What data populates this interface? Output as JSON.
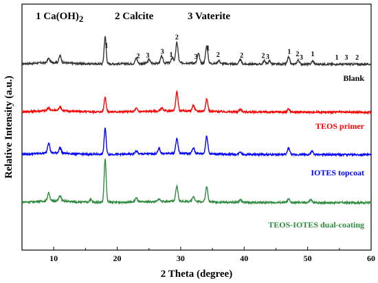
{
  "chart_data": {
    "type": "line",
    "title": "",
    "xlabel": "2 Theta (degree)",
    "ylabel": "Relative Intensity (a.u.)",
    "xlim": [
      5,
      60
    ],
    "xticks": [
      10,
      20,
      30,
      40,
      50,
      60
    ],
    "y_ticks_shown": false,
    "grid": false,
    "legend_entries": [
      {
        "number": "1",
        "name": "Ca(OH)2"
      },
      {
        "number": "2",
        "name": "Calcite"
      },
      {
        "number": "3",
        "name": "Vaterite"
      }
    ],
    "series": [
      {
        "name": "Blank",
        "color": "#333333",
        "offset": 3,
        "peaks": [
          [
            9.2,
            0.15
          ],
          [
            11.0,
            0.25
          ],
          [
            18.1,
            1.0
          ],
          [
            23.0,
            0.2
          ],
          [
            25.0,
            0.15
          ],
          [
            27.0,
            0.25
          ],
          [
            28.7,
            0.2
          ],
          [
            29.4,
            0.75
          ],
          [
            32.8,
            0.35
          ],
          [
            34.1,
            0.65
          ],
          [
            36.0,
            0.12
          ],
          [
            39.4,
            0.15
          ],
          [
            43.2,
            0.12
          ],
          [
            44.0,
            0.12
          ],
          [
            47.0,
            0.25
          ],
          [
            48.5,
            0.15
          ],
          [
            50.8,
            0.12
          ]
        ]
      },
      {
        "name": "TEOS primer",
        "color": "#ff0000",
        "offset": 2,
        "peaks": [
          [
            9.2,
            0.1
          ],
          [
            11.0,
            0.15
          ],
          [
            18.1,
            0.55
          ],
          [
            23.0,
            0.12
          ],
          [
            27.0,
            0.12
          ],
          [
            29.4,
            0.7
          ],
          [
            32.0,
            0.2
          ],
          [
            34.1,
            0.45
          ],
          [
            39.4,
            0.1
          ],
          [
            47.0,
            0.12
          ]
        ]
      },
      {
        "name": "IOTES topcoat",
        "color": "#0000ff",
        "offset": 1,
        "peaks": [
          [
            9.2,
            0.38
          ],
          [
            11.0,
            0.2
          ],
          [
            18.1,
            0.95
          ],
          [
            23.0,
            0.12
          ],
          [
            26.6,
            0.18
          ],
          [
            29.4,
            0.55
          ],
          [
            32.0,
            0.2
          ],
          [
            34.1,
            0.65
          ],
          [
            39.4,
            0.1
          ],
          [
            47.0,
            0.25
          ],
          [
            50.7,
            0.12
          ]
        ]
      },
      {
        "name": "TEOS-IOTES dual-coating",
        "color": "#2e8b3e",
        "offset": 0,
        "peaks": [
          [
            9.2,
            0.3
          ],
          [
            11.0,
            0.2
          ],
          [
            15.8,
            0.1
          ],
          [
            18.1,
            1.6
          ],
          [
            23.0,
            0.15
          ],
          [
            26.6,
            0.1
          ],
          [
            29.4,
            0.55
          ],
          [
            32.0,
            0.2
          ],
          [
            34.1,
            0.55
          ],
          [
            39.4,
            0.1
          ],
          [
            47.0,
            0.12
          ],
          [
            50.5,
            0.1
          ]
        ]
      }
    ],
    "peak_annotations": [
      {
        "x": 18.3,
        "label": "1"
      },
      {
        "x": 23.3,
        "label": "2"
      },
      {
        "x": 24.8,
        "label": "3"
      },
      {
        "x": 27.1,
        "label": "3"
      },
      {
        "x": 28.5,
        "label": "1"
      },
      {
        "x": 29.4,
        "label": "2"
      },
      {
        "x": 32.4,
        "label": "3"
      },
      {
        "x": 34.3,
        "label": "1"
      },
      {
        "x": 35.9,
        "label": "2"
      },
      {
        "x": 39.6,
        "label": "2"
      },
      {
        "x": 43.0,
        "label": "2"
      },
      {
        "x": 43.7,
        "label": "3"
      },
      {
        "x": 47.1,
        "label": "1"
      },
      {
        "x": 48.4,
        "label": "2"
      },
      {
        "x": 49.0,
        "label": "3"
      },
      {
        "x": 50.8,
        "label": "1"
      },
      {
        "x": 54.6,
        "label": "1"
      },
      {
        "x": 56.1,
        "label": "3"
      },
      {
        "x": 57.8,
        "label": "2"
      }
    ]
  }
}
